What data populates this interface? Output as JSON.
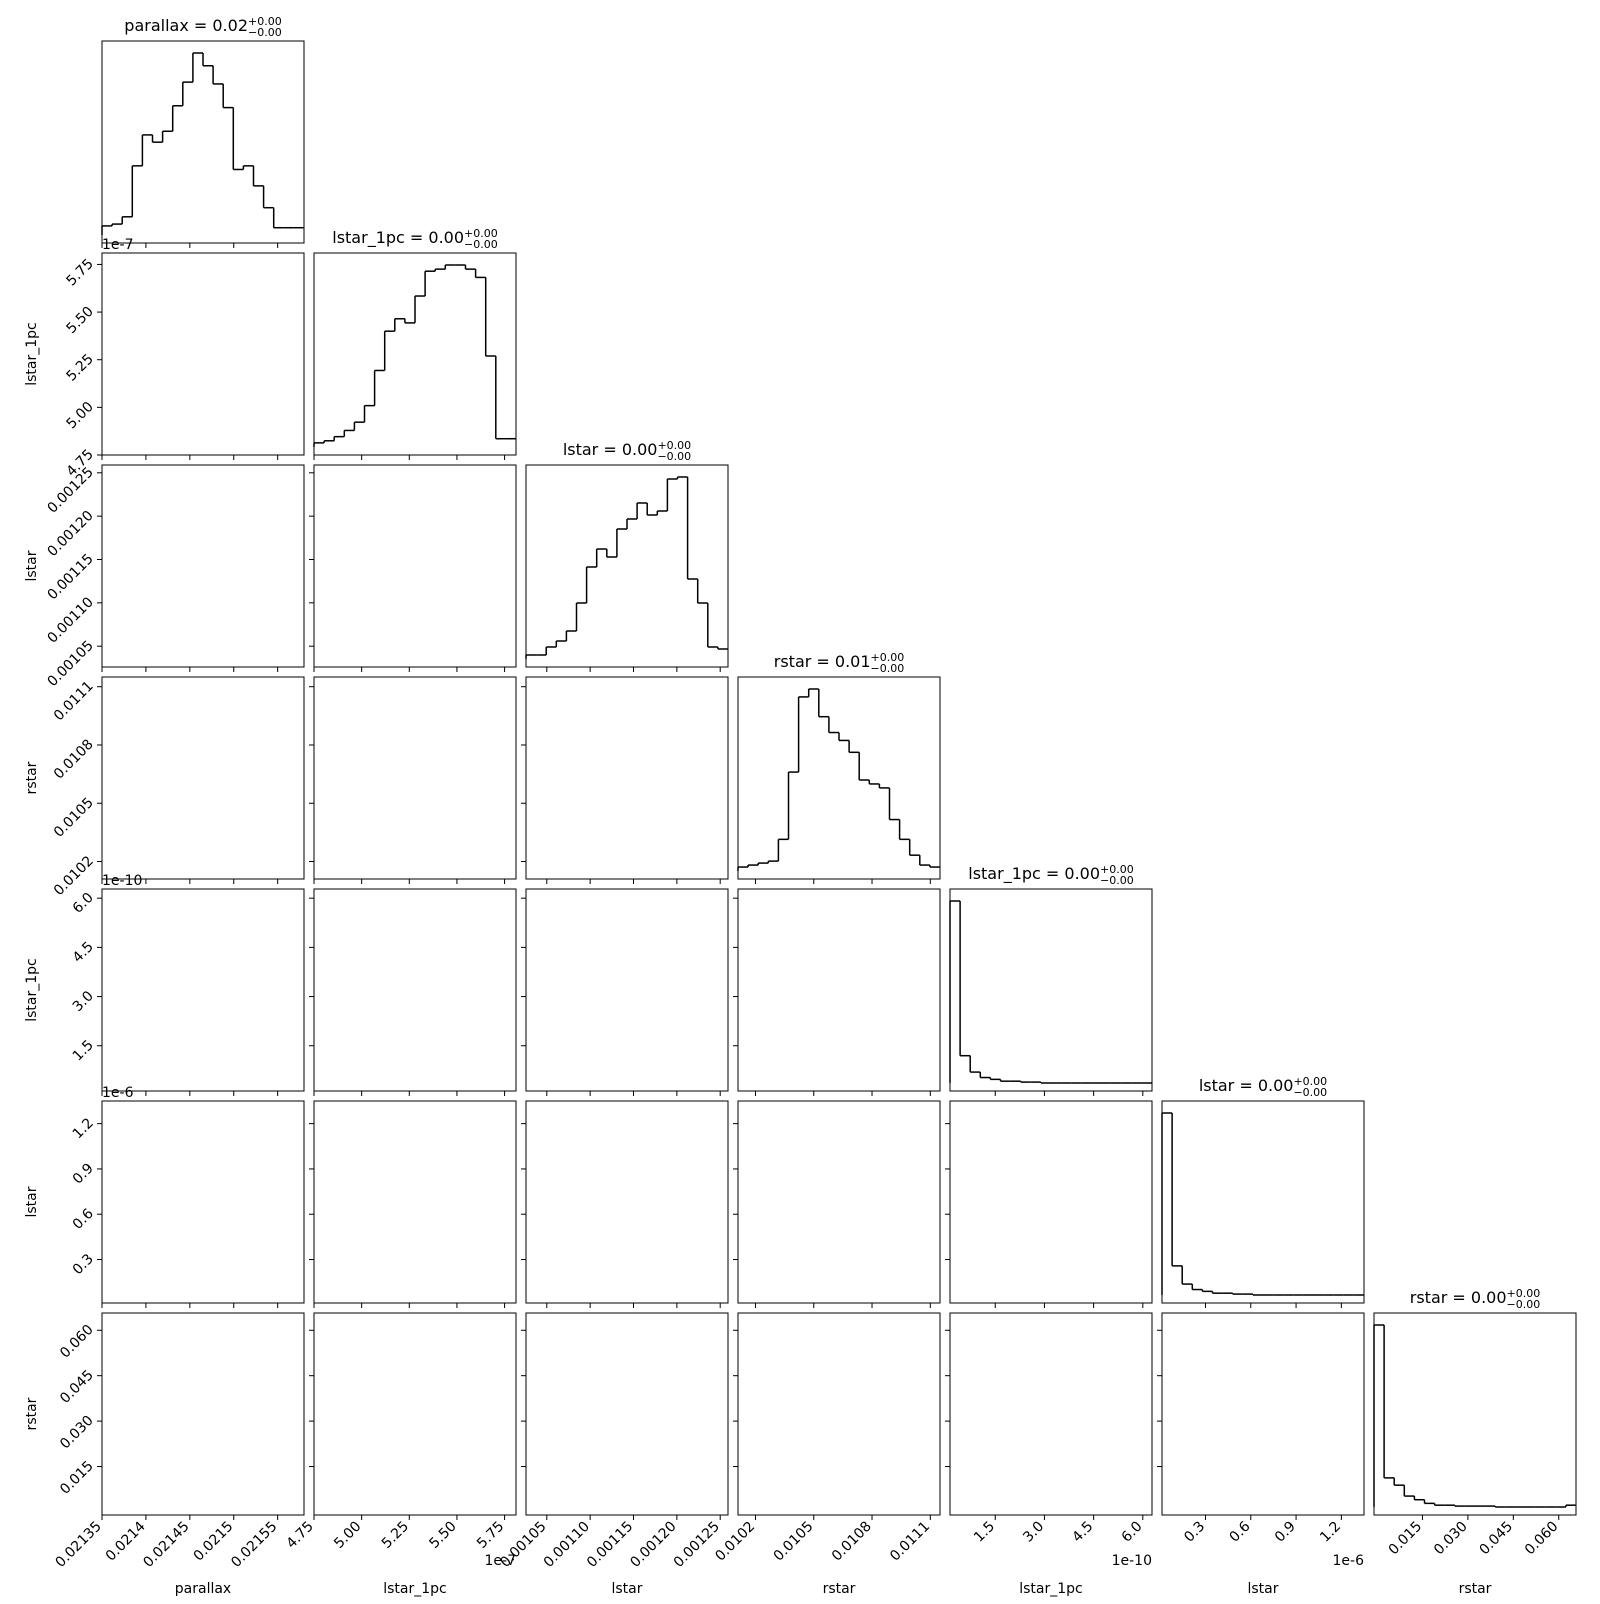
{
  "chart_data": {
    "type": "corner",
    "params": [
      {
        "name": "parallax",
        "title": "parallax = 0.02",
        "upper": "+0.00",
        "lower": "−0.00",
        "lim": [
          0.02135,
          0.02158
        ],
        "ticks": [
          0.02135,
          0.0214,
          0.02145,
          0.0215,
          0.02155
        ],
        "values": [
          5,
          6,
          10,
          38,
          55,
          51,
          57,
          71,
          84,
          100,
          93,
          83,
          70,
          36,
          38,
          27,
          15,
          4,
          4,
          4
        ]
      },
      {
        "name": "lstar_1pc",
        "title": "lstar_1pc = 0.00",
        "upper": "+0.00",
        "lower": "−0.00",
        "offset": "1e-7",
        "lim": [
          4.75,
          5.81
        ],
        "ticks": [
          4.75,
          {
            "value": 5,
            "label": "5.00"
          },
          5.25,
          {
            "value": 5.5,
            "label": "5.50"
          },
          5.75
        ],
        "values": [
          2,
          3,
          5,
          8,
          12,
          20,
          37,
          56,
          62,
          60,
          73,
          85,
          86,
          88,
          88,
          86,
          82,
          44,
          4,
          4
        ]
      },
      {
        "name": "lstar",
        "title": "lstar = 0.00",
        "upper": "+0.00",
        "lower": "−0.00",
        "lim": [
          0.001026,
          0.001259
        ],
        "ticks": [
          0.00105,
          {
            "value": 0.0011,
            "label": "0.00110"
          },
          0.00115,
          {
            "value": 0.0012,
            "label": "0.00120"
          },
          0.00125
        ],
        "values": [
          2,
          2,
          6,
          9,
          14,
          28,
          46,
          55,
          51,
          65,
          70,
          78,
          72,
          74,
          90,
          91,
          40,
          28,
          6,
          5
        ]
      },
      {
        "name": "rstar",
        "title": "rstar = 0.01",
        "upper": "+0.00",
        "lower": "−0.00",
        "lim": [
          0.01011,
          0.01115
        ],
        "ticks": [
          0.0102,
          0.0105,
          0.0108,
          0.0111
        ],
        "values": [
          2,
          3,
          4,
          5,
          16,
          50,
          88,
          92,
          78,
          70,
          66,
          60,
          46,
          44,
          42,
          26,
          16,
          8,
          3,
          2
        ]
      },
      {
        "name": "lstar_1pc",
        "title": "lstar_1pc = 0.00",
        "upper": "+0.00",
        "lower": "−0.00",
        "offset": "1e-10",
        "lim": [
          0.12,
          6.28
        ],
        "ticks": [
          1.5,
          {
            "value": 3,
            "label": "3.0"
          },
          4.5,
          {
            "value": 6,
            "label": "6.0"
          }
        ],
        "values": [
          100,
          15,
          6,
          3,
          2,
          1,
          1,
          0.5,
          0.5,
          0,
          0,
          0,
          0,
          0,
          0,
          0,
          0,
          0,
          0,
          0
        ]
      },
      {
        "name": "lstar",
        "title": "lstar = 0.00",
        "upper": "+0.00",
        "lower": "−0.00",
        "offset": "1e-6",
        "lim": [
          0.012,
          1.35
        ],
        "ticks": [
          0.3,
          0.6,
          0.9,
          1.2
        ],
        "values": [
          100,
          16,
          6,
          3,
          2,
          1,
          1,
          0.5,
          0.5,
          0,
          0,
          0,
          0,
          0,
          0,
          0,
          0,
          0,
          0,
          0
        ]
      },
      {
        "name": "rstar",
        "title": "rstar = 0.00",
        "upper": "+0.00",
        "lower": "−0.00",
        "lim": [
          -0.001,
          0.0657
        ],
        "ticks": [
          0.015,
          {
            "value": 0.03,
            "label": "0.030"
          },
          0.045,
          {
            "value": 0.06,
            "label": "0.060"
          }
        ],
        "values": [
          100,
          16,
          12,
          6,
          4,
          2,
          1,
          1,
          0.5,
          0.5,
          0.5,
          0.5,
          0,
          0,
          0,
          0,
          0,
          0,
          0,
          1
        ]
      }
    ]
  }
}
